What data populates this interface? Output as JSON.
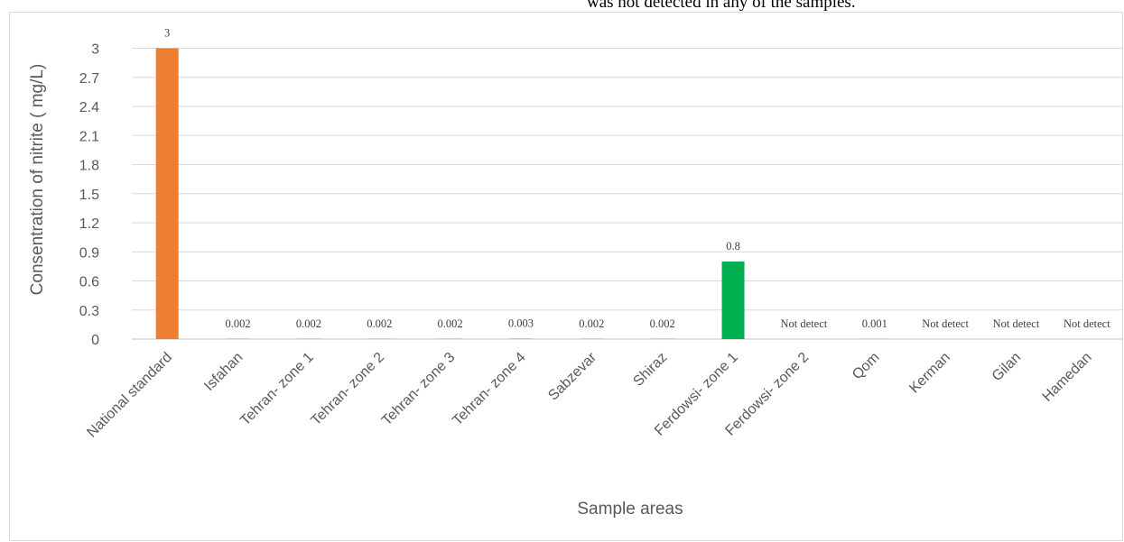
{
  "header_fragment": "was not detected in any of the samples.",
  "chart_data": {
    "type": "bar",
    "title": "",
    "xlabel": "Sample areas",
    "ylabel": "Consentration of nitrite ( mg/L)",
    "ylim": [
      0,
      3
    ],
    "yticks": [
      "0",
      "0.3",
      "0.6",
      "0.9",
      "1.2",
      "1.5",
      "1.8",
      "2.1",
      "2.4",
      "2.7",
      "3"
    ],
    "grid": true,
    "legend": "none",
    "categories": [
      "National standard",
      "Isfahan",
      "Tehran- zone 1",
      "Tehran- zone 2",
      "Tehran- zone 3",
      "Tehran- zone 4",
      "Sabzevar",
      "Shiraz",
      "Ferdowsi- zone 1",
      "Ferdowsi- zone 2",
      "Qom",
      "Kerman",
      "Gilan",
      "Hamedan"
    ],
    "values": [
      3,
      0.002,
      0.002,
      0.002,
      0.002,
      0.003,
      0.002,
      0.002,
      0.8,
      0,
      0.001,
      0,
      0,
      0
    ],
    "data_labels": [
      "3",
      "0.002",
      "0.002",
      "0.002",
      "0.002",
      "0.003",
      "0.002",
      "0.002",
      "0.8",
      "Not detect",
      "0.001",
      "Not detect",
      "Not detect",
      "Not detect"
    ],
    "bar_colors": [
      "#ED7D31",
      "#4472C4",
      "#4472C4",
      "#4472C4",
      "#4472C4",
      "#4472C4",
      "#4472C4",
      "#4472C4",
      "#00B050",
      "#4472C4",
      "#4472C4",
      "#4472C4",
      "#4472C4",
      "#4472C4"
    ]
  }
}
